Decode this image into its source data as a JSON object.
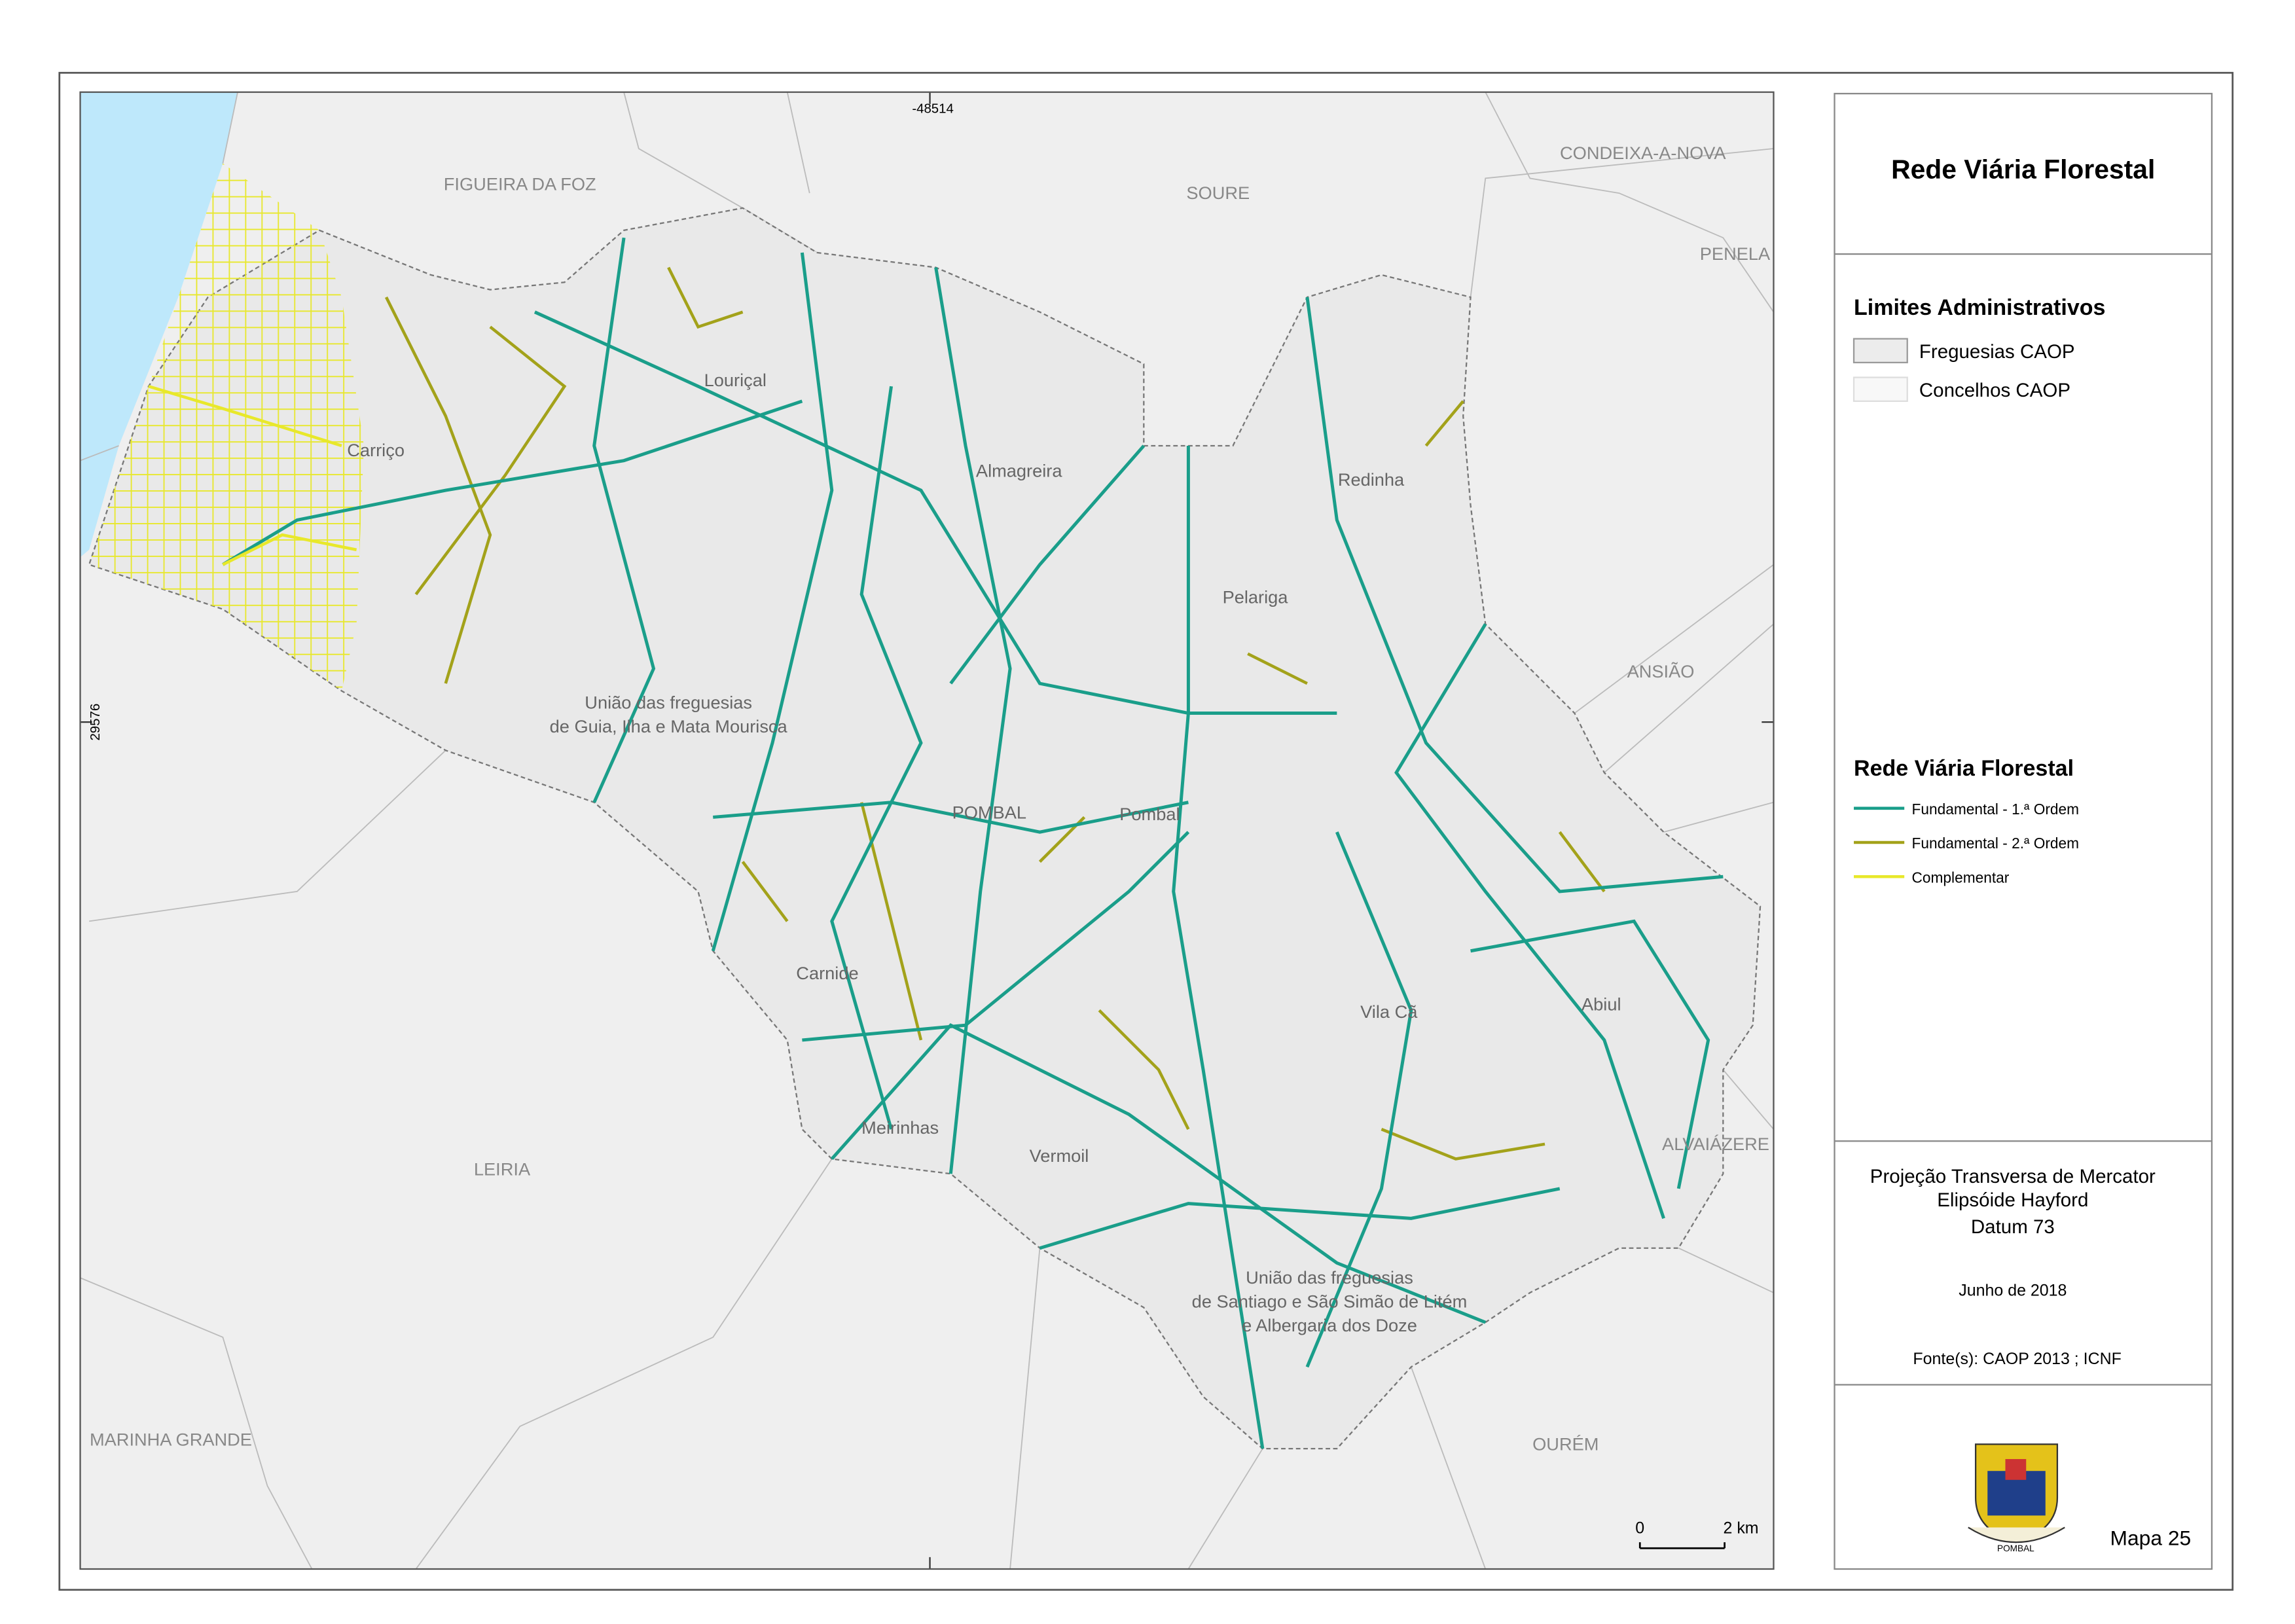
{
  "map": {
    "coordinates": {
      "x": "-48514",
      "y": "29576"
    },
    "concelhos": [
      "FIGUEIRA DA FOZ",
      "SOURE",
      "CONDEIXA-A-NOVA",
      "PENELA",
      "ANSIÃO",
      "ALVAIÁZERE",
      "OURÉM",
      "LEIRIA",
      "MARINHA GRANDE"
    ],
    "freguesias": [
      [
        "Louriçal"
      ],
      [
        "Carriço"
      ],
      [
        "Almagreira"
      ],
      [
        "Redinha"
      ],
      [
        "Pelariga"
      ],
      [
        "União das freguesias",
        "de Guia, Ilha e Mata Mourisca"
      ],
      [
        "POMBAL"
      ],
      [
        "Pombal"
      ],
      [
        "Carnide"
      ],
      [
        "Vila Cã"
      ],
      [
        "Abiul"
      ],
      [
        "Meirinhas"
      ],
      [
        "Vermoil"
      ],
      [
        "União das freguesias",
        "de Santiago e São Simão de Litém",
        "e Albergaria dos Doze"
      ]
    ]
  },
  "scale_bar": {
    "start": "0",
    "end": "2 km"
  },
  "legend": {
    "title": "Rede Viária Florestal",
    "admin_title": "Limites Administrativos",
    "admin_items": [
      "Freguesias CAOP",
      "Concelhos CAOP"
    ],
    "roads_title": "Rede Viária Florestal",
    "road_items": [
      {
        "label": "Fundamental - 1.ª Ordem",
        "color": "#1a9e8a"
      },
      {
        "label": "Fundamental - 2.ª Ordem",
        "color": "#a3a21a"
      },
      {
        "label": "Complementar",
        "color": "#e8e82a"
      }
    ]
  },
  "info": {
    "projection": [
      "Projeção Transversa de Mercator",
      "Elipsóide Hayford",
      "Datum 73"
    ],
    "date": "Junho de 2018",
    "sources": "Fonte(s): CAOP 2013 ; ICNF",
    "emblem": "POMBAL",
    "map_number": "Mapa 25"
  }
}
